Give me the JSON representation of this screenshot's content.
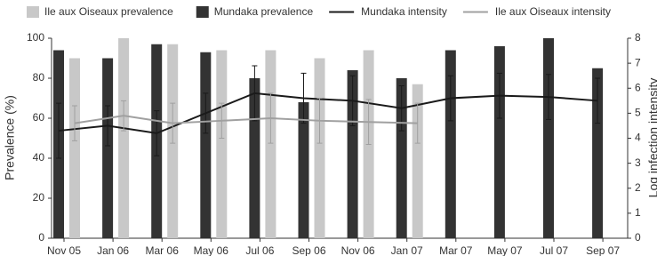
{
  "chart_data": {
    "type": "bar-line",
    "categories": [
      "Nov 05",
      "Jan 06",
      "Mar 06",
      "May 06",
      "Jul 06",
      "Sep 06",
      "Nov 06",
      "Jan 07",
      "Mar 07",
      "May 07",
      "Jul 07",
      "Sep 07"
    ],
    "y_label": "Prevalence (%)",
    "y2_label": "Log infection intensity",
    "ylim": [
      0,
      100
    ],
    "yticks": [
      0,
      20,
      40,
      60,
      80,
      100
    ],
    "y2lim": [
      0,
      8
    ],
    "y2ticks": [
      0,
      1,
      2,
      3,
      4,
      5,
      6,
      7,
      8
    ],
    "series": [
      {
        "name": "Ile aux Oiseaux prevalence",
        "kind": "bar",
        "color": "#c8c8c8",
        "values": [
          90,
          100,
          97,
          94,
          94,
          90,
          94,
          77,
          null,
          null,
          null,
          null
        ]
      },
      {
        "name": "Mundaka prevalence",
        "kind": "bar",
        "color": "#333333",
        "values": [
          94,
          90,
          97,
          93,
          80,
          68,
          84,
          80,
          94,
          96,
          100,
          85
        ]
      },
      {
        "name": "Mundaka intensity",
        "kind": "line",
        "axis": "y2",
        "color": "#1a1a1a",
        "values": [
          4.3,
          4.5,
          4.2,
          5.0,
          5.8,
          5.6,
          5.5,
          5.2,
          5.6,
          5.7,
          5.65,
          5.5
        ],
        "errors": [
          1.1,
          0.8,
          0.9,
          0.8,
          1.1,
          1.0,
          1.0,
          0.9,
          0.9,
          0.9,
          0.9,
          0.9
        ]
      },
      {
        "name": "Ile aux Oiseaux intensity",
        "kind": "line",
        "axis": "y2",
        "color": "#a0a0a0",
        "values": [
          4.6,
          4.9,
          4.6,
          4.7,
          4.8,
          4.7,
          4.65,
          4.6,
          null,
          null,
          null,
          null
        ],
        "errors": [
          0.7,
          0.6,
          0.8,
          0.7,
          1.0,
          0.9,
          0.9,
          0.8,
          null,
          null,
          null,
          null
        ]
      }
    ]
  }
}
